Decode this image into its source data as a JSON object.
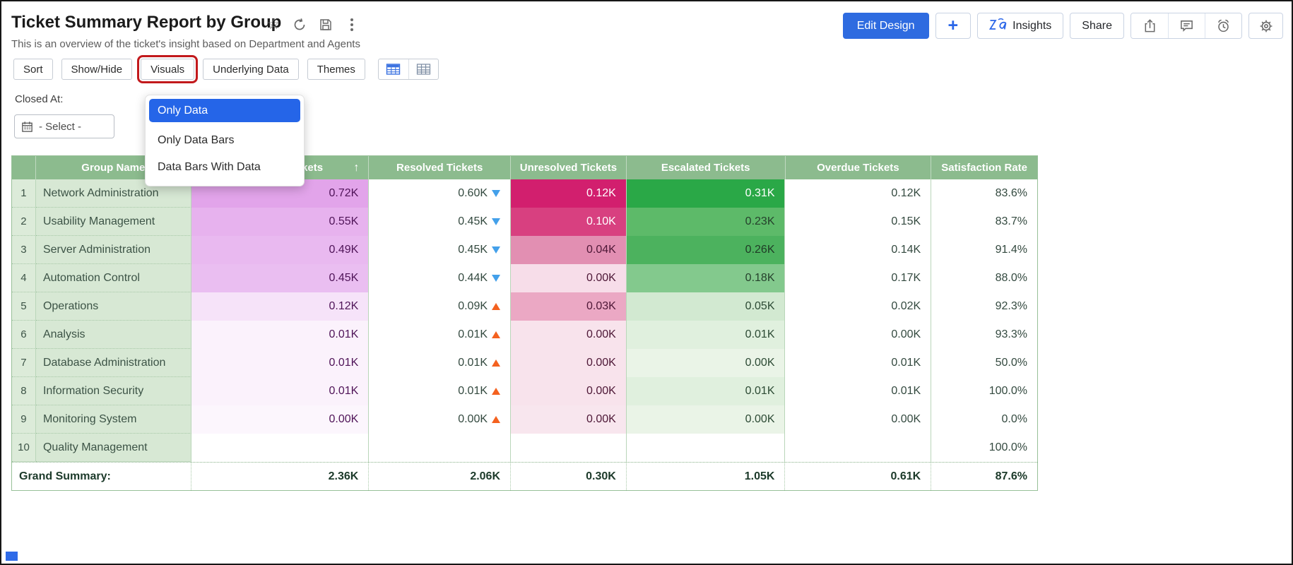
{
  "header": {
    "title": "Ticket Summary Report by Group",
    "subtitle": "This is an overview of the ticket's insight based on Department and Agents",
    "title_icons": [
      "star-icon",
      "refresh-icon",
      "save-icon",
      "kebab-menu-icon"
    ],
    "actions": {
      "edit_design": "Edit Design",
      "add": "+",
      "insights": "Insights",
      "share": "Share",
      "icon_buttons": [
        "export-icon",
        "comment-icon",
        "alarm-icon",
        "settings-gear-icon"
      ]
    }
  },
  "toolbar": {
    "buttons": [
      {
        "label": "Sort",
        "highlighted": false
      },
      {
        "label": "Show/Hide",
        "highlighted": false
      },
      {
        "label": "Visuals",
        "highlighted": true
      },
      {
        "label": "Underlying Data",
        "highlighted": false
      },
      {
        "label": "Themes",
        "highlighted": false
      }
    ],
    "view_icons": [
      "table-view-icon",
      "pivot-view-icon"
    ]
  },
  "filter": {
    "label": "Closed At:",
    "value": "- Select -",
    "icon": "calendar-icon"
  },
  "visuals_menu": {
    "items": [
      {
        "label": "Only Data",
        "selected": true
      },
      {
        "label": "Only Data Bars",
        "selected": false
      },
      {
        "label": "Data Bars With Data",
        "selected": false
      }
    ]
  },
  "table": {
    "columns": [
      "Group Name",
      "Incoming Tickets",
      "Resolved Tickets",
      "Unresolved Tickets",
      "Escalated Tickets",
      "Overdue Tickets",
      "Satisfaction Rate"
    ],
    "sort_indicator": "↑",
    "colors": {
      "header_bg": "#8cbb8e",
      "header_fg": "#ffffff",
      "incoming_fg": "#4f1458",
      "value_fg": "#33493f",
      "trend_down": "#43a0ea",
      "trend_up": "#f4611f"
    },
    "rows": [
      {
        "num": "1",
        "group": "Network Administration",
        "incoming": "0.72K",
        "incoming_bg": "#e2a4ea",
        "resolved": "0.60K",
        "trend": "down",
        "unresolved": "0.12K",
        "unresolved_bg": "#d21f6e",
        "unresolved_fg": "#ffffff",
        "escalated": "0.31K",
        "escalated_bg": "#2aa847",
        "escalated_fg": "#ffffff",
        "overdue": "0.12K",
        "satisfaction": "83.6%"
      },
      {
        "num": "2",
        "group": "Usability Management",
        "incoming": "0.55K",
        "incoming_bg": "#e7b2ee",
        "resolved": "0.45K",
        "trend": "down",
        "unresolved": "0.10K",
        "unresolved_bg": "#d84080",
        "unresolved_fg": "#ffffff",
        "escalated": "0.23K",
        "escalated_bg": "#5dba69",
        "escalated_fg": "#25402c",
        "overdue": "0.15K",
        "satisfaction": "83.7%"
      },
      {
        "num": "3",
        "group": "Server Administration",
        "incoming": "0.49K",
        "incoming_bg": "#e9b9f0",
        "resolved": "0.45K",
        "trend": "down",
        "unresolved": "0.04K",
        "unresolved_bg": "#e28fb2",
        "unresolved_fg": "#4d1736",
        "escalated": "0.26K",
        "escalated_bg": "#4cb25e",
        "escalated_fg": "#1f3a26",
        "overdue": "0.14K",
        "satisfaction": "91.4%"
      },
      {
        "num": "4",
        "group": "Automation Control",
        "incoming": "0.45K",
        "incoming_bg": "#eabef1",
        "resolved": "0.44K",
        "trend": "down",
        "unresolved": "0.00K",
        "unresolved_bg": "#f7dde9",
        "unresolved_fg": "#4d1736",
        "escalated": "0.18K",
        "escalated_bg": "#83c98d",
        "escalated_fg": "#25402c",
        "overdue": "0.17K",
        "satisfaction": "88.0%"
      },
      {
        "num": "5",
        "group": "Operations",
        "incoming": "0.12K",
        "incoming_bg": "#f6e3f9",
        "resolved": "0.09K",
        "trend": "up",
        "unresolved": "0.03K",
        "unresolved_bg": "#eba8c4",
        "unresolved_fg": "#4d1736",
        "escalated": "0.05K",
        "escalated_bg": "#d2e9d1",
        "escalated_fg": "#2c4a34",
        "overdue": "0.02K",
        "satisfaction": "92.3%"
      },
      {
        "num": "6",
        "group": "Analysis",
        "incoming": "0.01K",
        "incoming_bg": "#fbf2fc",
        "resolved": "0.01K",
        "trend": "up",
        "unresolved": "0.00K",
        "unresolved_bg": "#f8e3ec",
        "unresolved_fg": "#4d1736",
        "escalated": "0.01K",
        "escalated_bg": "#e0f0de",
        "escalated_fg": "#2c4a34",
        "overdue": "0.00K",
        "satisfaction": "93.3%"
      },
      {
        "num": "7",
        "group": "Database Administration",
        "incoming": "0.01K",
        "incoming_bg": "#fbf2fc",
        "resolved": "0.01K",
        "trend": "up",
        "unresolved": "0.00K",
        "unresolved_bg": "#f8e3ec",
        "unresolved_fg": "#4d1736",
        "escalated": "0.00K",
        "escalated_bg": "#eaf4e7",
        "escalated_fg": "#2c4a34",
        "overdue": "0.01K",
        "satisfaction": "50.0%"
      },
      {
        "num": "8",
        "group": "Information Security",
        "incoming": "0.01K",
        "incoming_bg": "#fbf2fc",
        "resolved": "0.01K",
        "trend": "up",
        "unresolved": "0.00K",
        "unresolved_bg": "#f8e3ec",
        "unresolved_fg": "#4d1736",
        "escalated": "0.01K",
        "escalated_bg": "#e0f0de",
        "escalated_fg": "#2c4a34",
        "overdue": "0.01K",
        "satisfaction": "100.0%"
      },
      {
        "num": "9",
        "group": "Monitoring System",
        "incoming": "0.00K",
        "incoming_bg": "#fcf6fd",
        "resolved": "0.00K",
        "trend": "up",
        "unresolved": "0.00K",
        "unresolved_bg": "#f8e6ee",
        "unresolved_fg": "#4d1736",
        "escalated": "0.00K",
        "escalated_bg": "#eaf4e7",
        "escalated_fg": "#2c4a34",
        "overdue": "0.00K",
        "satisfaction": "0.0%"
      },
      {
        "num": "10",
        "group": "Quality Management",
        "incoming": "",
        "incoming_bg": "#ffffff",
        "resolved": "",
        "trend": "",
        "unresolved": "",
        "unresolved_bg": "#ffffff",
        "unresolved_fg": "#4d1736",
        "escalated": "",
        "escalated_bg": "#ffffff",
        "escalated_fg": "#2c4a34",
        "overdue": "",
        "satisfaction": "100.0%"
      }
    ],
    "summary": {
      "label": "Grand Summary:",
      "values": [
        "2.36K",
        "2.06K",
        "0.30K",
        "1.05K",
        "0.61K",
        "87.6%"
      ]
    }
  }
}
